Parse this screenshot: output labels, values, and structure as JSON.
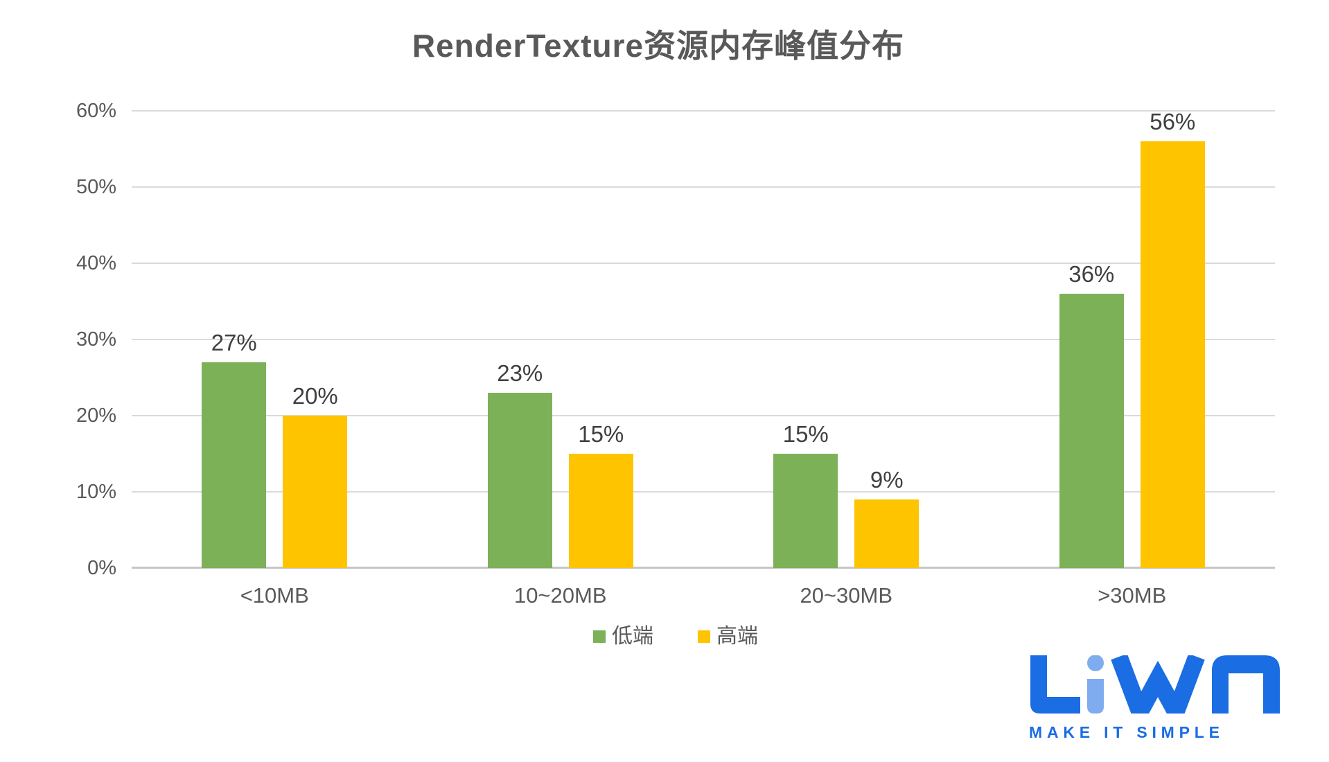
{
  "chart_data": {
    "type": "bar",
    "title": "RenderTexture资源内存峰值分布",
    "categories": [
      "<10MB",
      "10~20MB",
      "20~30MB",
      ">30MB"
    ],
    "series": [
      {
        "name": "低端",
        "color": "#7CB158",
        "values": [
          27,
          23,
          15,
          36
        ],
        "labels": [
          "27%",
          "23%",
          "15%",
          "36%"
        ]
      },
      {
        "name": "高端",
        "color": "#FFC400",
        "values": [
          20,
          15,
          9,
          56
        ],
        "labels": [
          "20%",
          "15%",
          "9%",
          "56%"
        ]
      }
    ],
    "value_suffix": "%",
    "xlabel": "",
    "ylabel": "",
    "ylim": [
      0,
      60
    ],
    "y_tick_interval": 10,
    "y_ticks": [
      "0%",
      "10%",
      "20%",
      "30%",
      "40%",
      "50%",
      "60%"
    ],
    "grid": true,
    "legend_position": "bottom",
    "data_labels_visible": true
  },
  "colors": {
    "title_text": "#595959",
    "axis_text": "#595959",
    "data_label_text": "#3F3F3F",
    "gridline": "#DADADA",
    "baseline": "#C6C6C6",
    "background": "#FFFFFF",
    "series_low_end": "#7CB158",
    "series_high_end": "#FFC400"
  },
  "brand": {
    "name": "LiWA",
    "tagline": "MAKE IT SIMPLE",
    "primary_blue": "#1A6DE3",
    "light_blue": "#7FACEF"
  }
}
